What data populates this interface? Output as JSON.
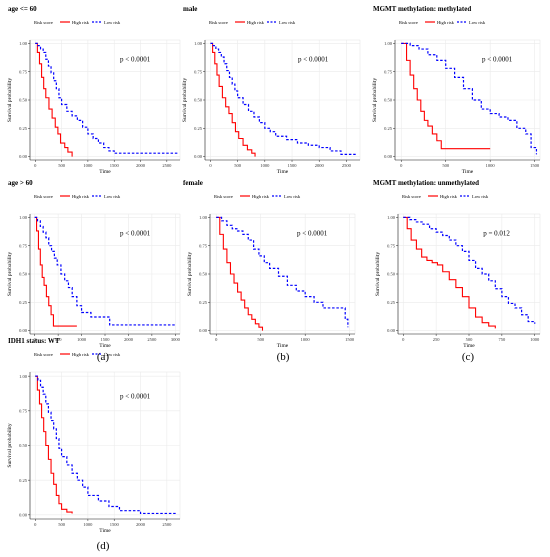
{
  "colors": {
    "high": "#ff0000",
    "low": "#0000ff",
    "grid": "#ebebeb",
    "axis": "#222222"
  },
  "panel_labels": [
    "(a)",
    "(b)",
    "(c)",
    "(d)"
  ],
  "chart_data": [
    {
      "type": "line",
      "title": "age <= 60",
      "legend": {
        "title": "Risk score",
        "position": "top-left",
        "entries": [
          "High risk",
          "Low risk"
        ]
      },
      "xlabel": "Time",
      "ylabel": "Survival probability",
      "xlim": [
        -100,
        2750
      ],
      "ylim": [
        -0.03,
        1.03
      ],
      "xticks": [
        0,
        500,
        1000,
        1500,
        2000,
        2500
      ],
      "xtick_labels": [
        "0",
        "500",
        "1000",
        "1500",
        "2000",
        "2500"
      ],
      "yticks": [
        0,
        0.25,
        0.5,
        0.75,
        1
      ],
      "ytick_labels": [
        "0.00",
        "0.25",
        "0.50",
        "0.75",
        "1.00"
      ],
      "annotation": "p < 0.0001",
      "series": [
        {
          "name": "High risk",
          "x": [
            0,
            40,
            80,
            120,
            160,
            200,
            260,
            320,
            380,
            430,
            480,
            560,
            620,
            700
          ],
          "y": [
            1.0,
            0.92,
            0.82,
            0.7,
            0.6,
            0.52,
            0.42,
            0.34,
            0.26,
            0.2,
            0.12,
            0.08,
            0.04,
            0.0
          ]
        },
        {
          "name": "Low risk",
          "x": [
            0,
            50,
            100,
            150,
            200,
            250,
            300,
            350,
            400,
            450,
            500,
            600,
            700,
            800,
            900,
            1000,
            1100,
            1200,
            1300,
            1400,
            1500,
            2000,
            2700
          ],
          "y": [
            1.0,
            0.98,
            0.95,
            0.92,
            0.86,
            0.8,
            0.74,
            0.67,
            0.6,
            0.52,
            0.46,
            0.4,
            0.36,
            0.32,
            0.26,
            0.2,
            0.16,
            0.12,
            0.08,
            0.05,
            0.03,
            0.03,
            0.03
          ]
        }
      ]
    },
    {
      "type": "line",
      "title": "male",
      "legend": {
        "title": "Risk score",
        "position": "top-left",
        "entries": [
          "High risk",
          "Low risk"
        ]
      },
      "xlabel": "Time",
      "ylabel": "Survival probability",
      "xlim": [
        -100,
        2750
      ],
      "ylim": [
        -0.03,
        1.03
      ],
      "xticks": [
        0,
        500,
        1000,
        1500,
        2000,
        2500
      ],
      "xtick_labels": [
        "0",
        "500",
        "1000",
        "1500",
        "2000",
        "2500"
      ],
      "yticks": [
        0,
        0.25,
        0.5,
        0.75,
        1
      ],
      "ytick_labels": [
        "0.00",
        "0.25",
        "0.50",
        "0.75",
        "1.00"
      ],
      "annotation": "p < 0.0001",
      "series": [
        {
          "name": "High risk",
          "x": [
            0,
            40,
            80,
            120,
            160,
            220,
            280,
            340,
            400,
            460,
            520,
            600,
            680,
            760,
            820
          ],
          "y": [
            1.0,
            0.92,
            0.82,
            0.72,
            0.62,
            0.52,
            0.44,
            0.38,
            0.3,
            0.22,
            0.16,
            0.1,
            0.06,
            0.03,
            0.0
          ]
        },
        {
          "name": "Low risk",
          "x": [
            0,
            50,
            100,
            150,
            200,
            250,
            300,
            350,
            400,
            450,
            500,
            600,
            700,
            800,
            900,
            1000,
            1100,
            1200,
            1400,
            1600,
            1800,
            2000,
            2200,
            2400,
            2700
          ],
          "y": [
            1.0,
            0.98,
            0.95,
            0.92,
            0.88,
            0.82,
            0.76,
            0.7,
            0.64,
            0.58,
            0.52,
            0.46,
            0.4,
            0.35,
            0.3,
            0.25,
            0.22,
            0.18,
            0.15,
            0.12,
            0.1,
            0.08,
            0.05,
            0.02,
            0.02
          ]
        }
      ]
    },
    {
      "type": "line",
      "title": "MGMT methylation: methylated",
      "legend": {
        "title": "Risk score",
        "position": "top-left",
        "entries": [
          "High risk",
          "Low risk"
        ]
      },
      "xlabel": "Time",
      "ylabel": "Survival probability",
      "xlim": [
        -70,
        1560
      ],
      "ylim": [
        -0.03,
        1.03
      ],
      "xticks": [
        0,
        500,
        1000,
        1500
      ],
      "xtick_labels": [
        "0",
        "500",
        "1000",
        "1500"
      ],
      "yticks": [
        0,
        0.25,
        0.5,
        0.75,
        1
      ],
      "ytick_labels": [
        "0.00",
        "0.25",
        "0.50",
        "0.75",
        "1.00"
      ],
      "annotation": "p < 0.0001",
      "series": [
        {
          "name": "High risk",
          "x": [
            0,
            60,
            100,
            140,
            180,
            220,
            260,
            300,
            350,
            400,
            450,
            1000
          ],
          "y": [
            1.0,
            0.85,
            0.72,
            0.6,
            0.5,
            0.4,
            0.32,
            0.27,
            0.2,
            0.14,
            0.07,
            0.07
          ]
        },
        {
          "name": "Low risk",
          "x": [
            0,
            100,
            200,
            300,
            400,
            500,
            600,
            700,
            800,
            900,
            1000,
            1100,
            1200,
            1300,
            1400,
            1460,
            1520
          ],
          "y": [
            1.0,
            0.98,
            0.95,
            0.9,
            0.85,
            0.78,
            0.7,
            0.6,
            0.5,
            0.42,
            0.38,
            0.35,
            0.32,
            0.25,
            0.2,
            0.08,
            0.02
          ]
        }
      ]
    },
    {
      "type": "line",
      "title": "age > 60",
      "legend": {
        "title": "Risk score",
        "position": "top-left",
        "entries": [
          "High risk",
          "Low risk"
        ]
      },
      "xlabel": "Time",
      "ylabel": "Survival probability",
      "xlim": [
        -100,
        3100
      ],
      "ylim": [
        -0.03,
        1.03
      ],
      "xticks": [
        0,
        500,
        1000,
        1500,
        2000,
        2500,
        3000
      ],
      "xtick_labels": [
        "0",
        "500",
        "1000",
        "1500",
        "2000",
        "2500",
        "3000"
      ],
      "yticks": [
        0,
        0.25,
        0.5,
        0.75,
        1
      ],
      "ytick_labels": [
        "0.00",
        "0.25",
        "0.50",
        "0.75",
        "1.00"
      ],
      "annotation": "p < 0.0001",
      "series": [
        {
          "name": "High risk",
          "x": [
            0,
            40,
            80,
            120,
            160,
            200,
            250,
            300,
            350,
            400,
            500,
            900
          ],
          "y": [
            1.0,
            0.88,
            0.72,
            0.58,
            0.47,
            0.4,
            0.3,
            0.22,
            0.14,
            0.04,
            0.04,
            0.04
          ]
        },
        {
          "name": "Low risk",
          "x": [
            0,
            60,
            120,
            180,
            240,
            300,
            360,
            420,
            480,
            560,
            640,
            720,
            800,
            900,
            1000,
            1200,
            1400,
            1600,
            1800,
            2000,
            2500,
            3000
          ],
          "y": [
            1.0,
            0.97,
            0.92,
            0.87,
            0.82,
            0.75,
            0.7,
            0.64,
            0.58,
            0.5,
            0.44,
            0.38,
            0.3,
            0.22,
            0.16,
            0.12,
            0.12,
            0.05,
            0.05,
            0.05,
            0.05,
            0.05
          ]
        }
      ]
    },
    {
      "type": "line",
      "title": "female",
      "legend": {
        "title": "Risk score",
        "position": "top-left",
        "entries": [
          "High risk",
          "Low risk"
        ]
      },
      "xlabel": "Time",
      "ylabel": "Survival probability",
      "xlim": [
        -70,
        1560
      ],
      "ylim": [
        -0.03,
        1.03
      ],
      "xticks": [
        0,
        500,
        1000,
        1500
      ],
      "xtick_labels": [
        "0",
        "500",
        "1000",
        "1500"
      ],
      "yticks": [
        0,
        0.25,
        0.5,
        0.75,
        1
      ],
      "ytick_labels": [
        "0.00",
        "0.25",
        "0.50",
        "0.75",
        "1.00"
      ],
      "annotation": "p < 0.0001",
      "series": [
        {
          "name": "High risk",
          "x": [
            0,
            40,
            80,
            120,
            160,
            200,
            240,
            280,
            320,
            360,
            400,
            440,
            480,
            520
          ],
          "y": [
            1.0,
            0.85,
            0.72,
            0.6,
            0.5,
            0.42,
            0.34,
            0.27,
            0.2,
            0.14,
            0.1,
            0.06,
            0.03,
            0.0
          ]
        },
        {
          "name": "Low risk",
          "x": [
            0,
            60,
            120,
            180,
            240,
            300,
            360,
            420,
            480,
            540,
            600,
            700,
            800,
            900,
            1000,
            1100,
            1200,
            1300,
            1400,
            1450,
            1480
          ],
          "y": [
            1.0,
            0.97,
            0.93,
            0.9,
            0.88,
            0.85,
            0.8,
            0.72,
            0.66,
            0.6,
            0.55,
            0.48,
            0.4,
            0.35,
            0.3,
            0.25,
            0.2,
            0.2,
            0.2,
            0.1,
            0.03
          ]
        }
      ]
    },
    {
      "type": "line",
      "title": "MGMT methylation: unmethylated",
      "legend": {
        "title": "Risk score",
        "position": "top-left",
        "entries": [
          "High risk",
          "Low risk"
        ]
      },
      "xlabel": "Time",
      "ylabel": "Survival probability",
      "xlim": [
        -40,
        1040
      ],
      "ylim": [
        -0.03,
        1.03
      ],
      "xticks": [
        0,
        250,
        500,
        750,
        1000
      ],
      "xtick_labels": [
        "0",
        "250",
        "500",
        "750",
        "1000"
      ],
      "yticks": [
        0,
        0.25,
        0.5,
        0.75,
        1
      ],
      "ytick_labels": [
        "0.00",
        "0.25",
        "0.50",
        "0.75",
        "1.00"
      ],
      "annotation": "p = 0.012",
      "series": [
        {
          "name": "High risk",
          "x": [
            0,
            30,
            60,
            100,
            140,
            180,
            220,
            260,
            300,
            350,
            400,
            450,
            500,
            550,
            600,
            650,
            700
          ],
          "y": [
            1.0,
            0.9,
            0.8,
            0.72,
            0.65,
            0.62,
            0.6,
            0.58,
            0.52,
            0.45,
            0.38,
            0.3,
            0.2,
            0.12,
            0.07,
            0.04,
            0.02
          ]
        },
        {
          "name": "Low risk",
          "x": [
            0,
            50,
            100,
            150,
            200,
            250,
            300,
            350,
            400,
            450,
            500,
            550,
            600,
            650,
            700,
            750,
            800,
            850,
            900,
            950,
            1000
          ],
          "y": [
            1.0,
            0.98,
            0.96,
            0.94,
            0.9,
            0.87,
            0.84,
            0.8,
            0.75,
            0.7,
            0.62,
            0.55,
            0.5,
            0.44,
            0.37,
            0.3,
            0.24,
            0.2,
            0.14,
            0.08,
            0.06
          ]
        }
      ]
    },
    {
      "type": "line",
      "title": "IDH1 status: WT",
      "legend": {
        "title": "Risk score",
        "position": "top-left",
        "entries": [
          "High risk",
          "Low risk"
        ]
      },
      "xlabel": "Time",
      "ylabel": "Survival probability",
      "xlim": [
        -100,
        2750
      ],
      "ylim": [
        -0.03,
        1.03
      ],
      "xticks": [
        0,
        500,
        1000,
        1500,
        2000,
        2500
      ],
      "xtick_labels": [
        "0",
        "500",
        "1000",
        "1500",
        "2000",
        "2500"
      ],
      "yticks": [
        0,
        0.25,
        0.5,
        0.75,
        1
      ],
      "ytick_labels": [
        "0.00",
        "0.25",
        "0.50",
        "0.75",
        "1.00"
      ],
      "annotation": "p < 0.0001",
      "series": [
        {
          "name": "High risk",
          "x": [
            0,
            40,
            80,
            120,
            160,
            200,
            250,
            300,
            350,
            400,
            450,
            500,
            600,
            700
          ],
          "y": [
            1.0,
            0.9,
            0.8,
            0.7,
            0.6,
            0.5,
            0.4,
            0.3,
            0.22,
            0.14,
            0.08,
            0.04,
            0.02,
            0.01
          ]
        },
        {
          "name": "Low risk",
          "x": [
            0,
            50,
            100,
            150,
            200,
            250,
            300,
            350,
            400,
            450,
            500,
            600,
            700,
            800,
            900,
            1000,
            1200,
            1400,
            1600,
            2000,
            2700
          ],
          "y": [
            1.0,
            0.97,
            0.92,
            0.87,
            0.8,
            0.74,
            0.68,
            0.62,
            0.55,
            0.48,
            0.42,
            0.36,
            0.3,
            0.25,
            0.2,
            0.14,
            0.1,
            0.06,
            0.03,
            0.01,
            0.01
          ]
        }
      ]
    }
  ]
}
